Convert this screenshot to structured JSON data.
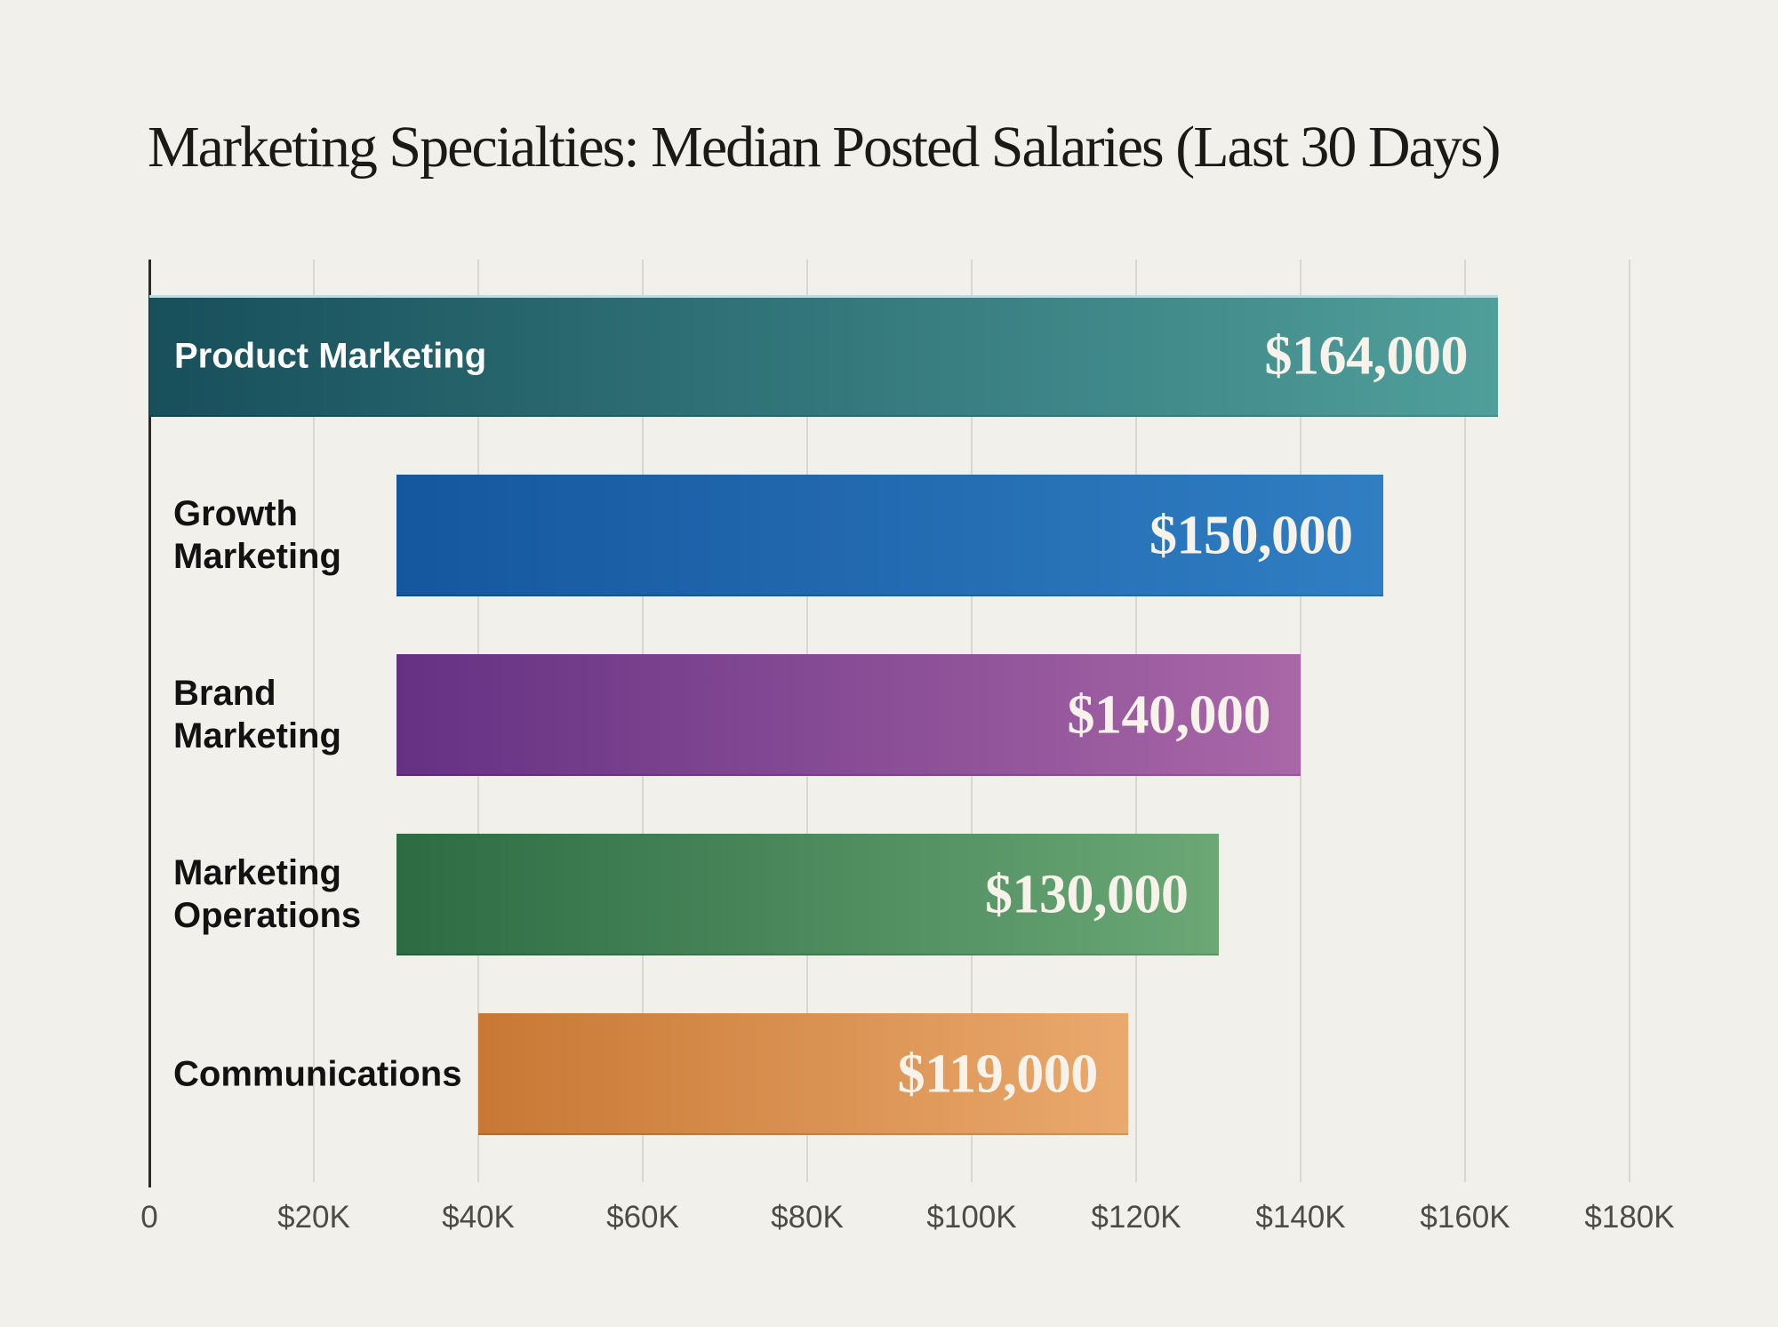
{
  "title": "Marketing Specialties: Median Posted Salaries (Last 30 Days)",
  "colors": {
    "background": "#f2f0ea",
    "title_text": "#1b1a17",
    "grid_line": "#d9d7d1",
    "axis_line": "#2b2b28",
    "tick_label_text": "#4d4b47",
    "category_label_text": "#121212",
    "value_label_text": "#f7f3ea",
    "inside_label_text": "#ffffff"
  },
  "chart_data": {
    "type": "bar",
    "orientation": "horizontal",
    "title": "Marketing Specialties: Median Posted Salaries (Last 30 Days)",
    "unit": "USD",
    "grid": "vertical",
    "x_axis": {
      "min": 0,
      "max": 180000,
      "tick_interval": 20000,
      "ticks": [
        {
          "value": 0,
          "label": "0"
        },
        {
          "value": 20000,
          "label": "$20K"
        },
        {
          "value": 40000,
          "label": "$40K"
        },
        {
          "value": 60000,
          "label": "$60K"
        },
        {
          "value": 80000,
          "label": "$80K"
        },
        {
          "value": 100000,
          "label": "$100K"
        },
        {
          "value": 120000,
          "label": "$120K"
        },
        {
          "value": 140000,
          "label": "$140K"
        },
        {
          "value": 160000,
          "label": "$160K"
        },
        {
          "value": 180000,
          "label": "$180K"
        }
      ]
    },
    "bars": [
      {
        "category": "Product Marketing",
        "value": 164000,
        "value_label": "$164,000",
        "bar_start": 0,
        "bar_end": 164000,
        "label_position": "inside",
        "color_start": "#174f5b",
        "color_end": "#509f9b",
        "top_highlight": "#b9dde0"
      },
      {
        "category": "Growth\nMarketing",
        "value": 150000,
        "value_label": "$150,000",
        "bar_start": 30000,
        "bar_end": 150000,
        "label_position": "outside",
        "color_start": "#15579f",
        "color_end": "#307ec3"
      },
      {
        "category": "Brand\nMarketing",
        "value": 140000,
        "value_label": "$140,000",
        "bar_start": 30000,
        "bar_end": 140000,
        "label_position": "outside",
        "color_start": "#653183",
        "color_end": "#a967a7"
      },
      {
        "category": "Marketing\nOperations",
        "value": 130000,
        "value_label": "$130,000",
        "bar_start": 30000,
        "bar_end": 130000,
        "label_position": "outside",
        "color_start": "#2d6b43",
        "color_end": "#6ba876"
      },
      {
        "category": "Communications",
        "value": 119000,
        "value_label": "$119,000",
        "bar_start": 40000,
        "bar_end": 119000,
        "label_position": "outside",
        "color_start": "#c87834",
        "color_end": "#eaa96d"
      }
    ]
  }
}
